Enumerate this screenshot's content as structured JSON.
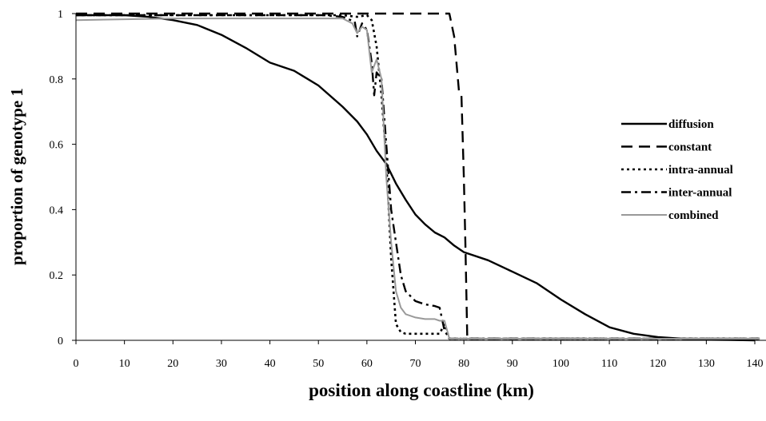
{
  "chart_data": {
    "type": "line",
    "title": "",
    "xlabel": "position along coastline (km)",
    "ylabel": "proportion of genotype 1",
    "xlim": [
      0,
      140
    ],
    "ylim": [
      0,
      1
    ],
    "xticks": [
      0,
      10,
      20,
      30,
      40,
      50,
      60,
      70,
      80,
      90,
      100,
      110,
      120,
      130,
      140
    ],
    "yticks": [
      0,
      0.2,
      0.4,
      0.6,
      0.8,
      1
    ],
    "ytick_labels": [
      "0",
      "0.2",
      "0.4",
      "0.6",
      "0.8",
      "1"
    ],
    "grid": false,
    "legend_position": "right",
    "series": [
      {
        "name": "diffusion",
        "style": "solid",
        "color": "#000000",
        "x": [
          0,
          10,
          15,
          20,
          25,
          30,
          35,
          40,
          45,
          50,
          55,
          58,
          60,
          62,
          64,
          66,
          68,
          70,
          72,
          74,
          76,
          78,
          80,
          85,
          90,
          95,
          100,
          105,
          110,
          115,
          120,
          125,
          130,
          135,
          140
        ],
        "y": [
          0.995,
          0.995,
          0.99,
          0.98,
          0.965,
          0.935,
          0.895,
          0.85,
          0.825,
          0.78,
          0.715,
          0.67,
          0.63,
          0.58,
          0.54,
          0.48,
          0.43,
          0.385,
          0.355,
          0.33,
          0.315,
          0.29,
          0.27,
          0.245,
          0.21,
          0.175,
          0.125,
          0.08,
          0.04,
          0.02,
          0.01,
          0.005,
          0.002,
          0.001,
          0.0
        ]
      },
      {
        "name": "constant",
        "style": "dash",
        "color": "#000000",
        "x": [
          0,
          77,
          78,
          79,
          79.5,
          80,
          80.3,
          80.7,
          141
        ],
        "y": [
          1,
          1,
          0.93,
          0.76,
          0.75,
          0.5,
          0.3,
          0.005,
          0.005
        ]
      },
      {
        "name": "intra-annual",
        "style": "dot",
        "color": "#000000",
        "x": [
          0,
          55,
          58,
          60,
          61,
          62,
          63,
          64,
          65,
          66,
          67,
          68,
          75,
          76,
          77,
          141
        ],
        "y": [
          0.995,
          0.995,
          0.99,
          0.995,
          0.98,
          0.9,
          0.75,
          0.55,
          0.25,
          0.05,
          0.025,
          0.02,
          0.02,
          0.05,
          0.005,
          0.005
        ]
      },
      {
        "name": "inter-annual",
        "style": "dashdot",
        "color": "#000000",
        "x": [
          0,
          51,
          55,
          57.5,
          58,
          59,
          60,
          61,
          61.5,
          62,
          63,
          64,
          65,
          66,
          67,
          68,
          70,
          72,
          74,
          75,
          76,
          77,
          141
        ],
        "y": [
          0.995,
          0.995,
          0.99,
          0.975,
          0.93,
          0.97,
          0.95,
          0.85,
          0.75,
          0.82,
          0.8,
          0.6,
          0.4,
          0.3,
          0.2,
          0.15,
          0.12,
          0.11,
          0.105,
          0.1,
          0.03,
          0.005,
          0.005
        ]
      },
      {
        "name": "combined",
        "style": "solid",
        "color": "#999999",
        "x": [
          0,
          20,
          40,
          55,
          57,
          58,
          59,
          60,
          61,
          62,
          63,
          64,
          65,
          66,
          67,
          68,
          70,
          72,
          74,
          75,
          76,
          77,
          141
        ],
        "y": [
          0.98,
          0.985,
          0.985,
          0.985,
          0.97,
          0.94,
          0.96,
          0.95,
          0.82,
          0.86,
          0.8,
          0.5,
          0.3,
          0.15,
          0.1,
          0.08,
          0.07,
          0.065,
          0.065,
          0.06,
          0.06,
          0.005,
          0.005
        ]
      }
    ]
  }
}
